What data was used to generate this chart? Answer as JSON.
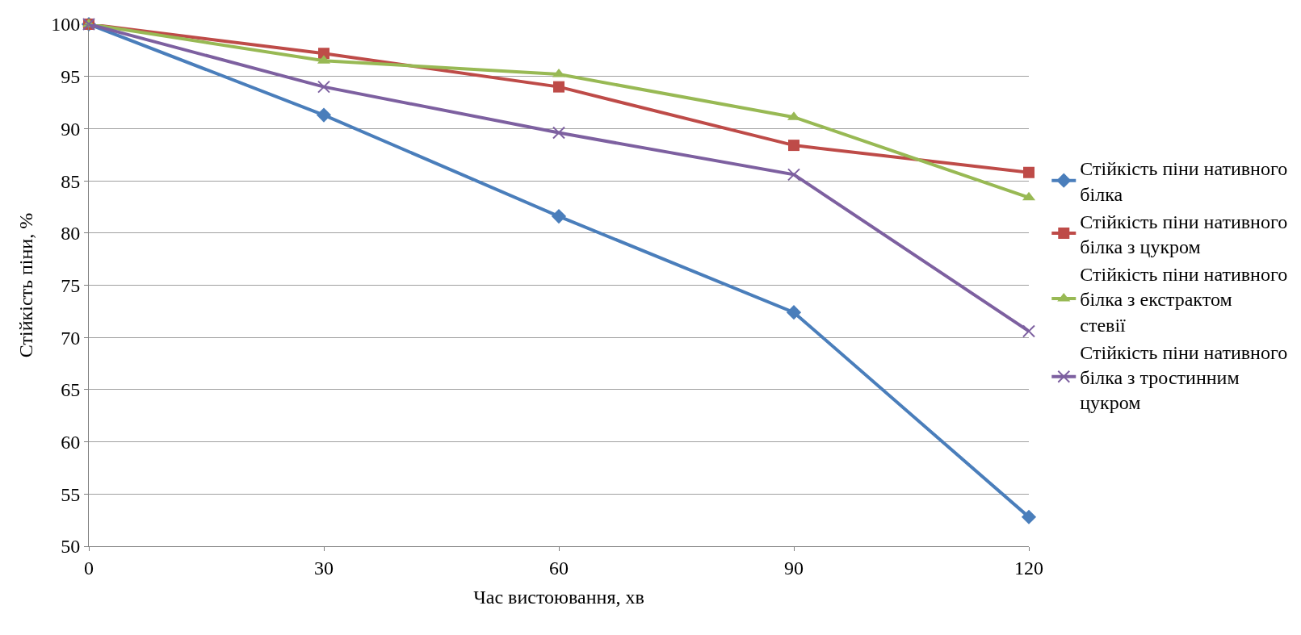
{
  "chart_data": {
    "type": "line",
    "xlabel": "Час вистоювання, хв",
    "ylabel": "Стійкість піни, %",
    "x": [
      0,
      30,
      60,
      90,
      120
    ],
    "xlim": [
      0,
      120
    ],
    "xticks": [
      0,
      30,
      60,
      90,
      120
    ],
    "ylim": [
      50,
      100
    ],
    "yticks": [
      50,
      55,
      60,
      65,
      70,
      75,
      80,
      85,
      90,
      95,
      100
    ],
    "grid": "y",
    "legend": "right",
    "series": [
      {
        "name": "Стійкість піни нативного білка",
        "color": "#4a7ebb",
        "marker": "diamond",
        "values": [
          100,
          91.3,
          81.6,
          72.4,
          52.8
        ]
      },
      {
        "name": "Стійкість піни нативного білка з цукром",
        "color": "#be4b48",
        "marker": "square",
        "values": [
          100,
          97.2,
          94.0,
          88.4,
          85.8
        ]
      },
      {
        "name": "Стійкість піни нативного білка з екстрактом стевії",
        "color": "#98b954",
        "marker": "triangle",
        "values": [
          100,
          96.5,
          95.2,
          91.1,
          83.4
        ]
      },
      {
        "name": "Стійкість піни нативного білка з тростинним цукром",
        "color": "#7d60a0",
        "marker": "cross",
        "values": [
          100,
          94.0,
          89.6,
          85.6,
          70.6
        ]
      }
    ]
  }
}
